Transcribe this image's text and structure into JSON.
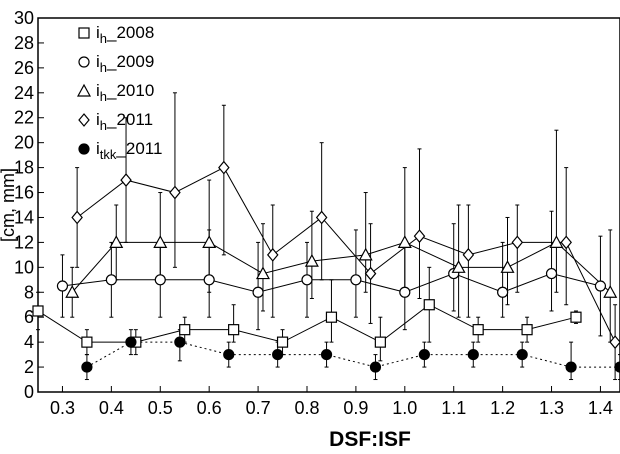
{
  "chart_data": {
    "type": "scatter",
    "xlabel": "DSF:ISF",
    "ylabel": "[cm, mm]",
    "xlim": [
      0.25,
      1.44
    ],
    "ylim": [
      0,
      30
    ],
    "xticks": [
      0.3,
      0.4,
      0.5,
      0.6,
      0.7,
      0.8,
      0.9,
      1.0,
      1.1,
      1.2,
      1.3,
      1.4
    ],
    "xtick_labels": [
      "0.3",
      "0.4",
      "0.5",
      "0.6",
      "0.7",
      "0.8",
      "0.9",
      "1.0",
      "1.1",
      "1.2",
      "1.3",
      "1.4"
    ],
    "yticks": [
      0,
      2,
      4,
      6,
      8,
      10,
      12,
      14,
      16,
      18,
      20,
      22,
      24,
      26,
      28,
      30
    ],
    "ytick_labels": [
      "0",
      "2",
      "4",
      "6",
      "8",
      "10",
      "12",
      "14",
      "16",
      "18",
      "20",
      "22",
      "24",
      "26",
      "28",
      "30"
    ],
    "grid": false,
    "legend_position": "top-left",
    "series": [
      {
        "name": "ih_2008",
        "label_main": "i",
        "label_sub": "h",
        "label_suffix": "_2008",
        "marker": "square",
        "line": "solid",
        "x": [
          0.25,
          0.35,
          0.45,
          0.55,
          0.65,
          0.75,
          0.85,
          0.95,
          1.05,
          1.15,
          1.25,
          1.35
        ],
        "y": [
          6.5,
          4,
          4,
          5,
          5,
          4,
          6,
          4,
          7,
          5,
          5,
          6
        ],
        "err_low": [
          1.5,
          1,
          1,
          1,
          1,
          1,
          2,
          1.5,
          3,
          1,
          1,
          0.5
        ],
        "err_high": [
          1.5,
          1,
          1,
          1,
          2,
          1,
          3,
          2,
          3,
          1,
          1,
          0.5
        ]
      },
      {
        "name": "ih_2009",
        "label_main": "i",
        "label_sub": "h",
        "label_suffix": "_2009",
        "marker": "circle",
        "line": "solid",
        "x": [
          0.3,
          0.4,
          0.5,
          0.6,
          0.7,
          0.8,
          0.9,
          1.0,
          1.1,
          1.2,
          1.3,
          1.4
        ],
        "y": [
          8.5,
          9,
          9,
          9,
          8,
          9,
          9,
          8,
          9.5,
          8,
          9.5,
          8.5
        ],
        "err_low": [
          2.5,
          3,
          3,
          3,
          3,
          3,
          3,
          3,
          3,
          2,
          3,
          4
        ],
        "err_high": [
          2.5,
          3,
          3,
          4,
          4,
          3,
          4,
          4,
          4,
          4,
          5,
          4
        ]
      },
      {
        "name": "ih_2010",
        "label_main": "i",
        "label_sub": "h",
        "label_suffix": "_2010",
        "marker": "triangle",
        "line": "solid",
        "x": [
          0.32,
          0.41,
          0.5,
          0.6,
          0.71,
          0.81,
          0.92,
          1.0,
          1.11,
          1.21,
          1.31,
          1.42
        ],
        "y": [
          8,
          12,
          12,
          12,
          9.5,
          10.5,
          11,
          12,
          10,
          10,
          12,
          8
        ],
        "err_low": [
          2,
          3,
          3,
          4,
          3,
          3,
          3,
          4,
          4,
          3,
          4,
          4
        ],
        "err_high": [
          2,
          3,
          4,
          5,
          4,
          4,
          5,
          6,
          5,
          4,
          9,
          5
        ]
      },
      {
        "name": "ih_2011",
        "label_main": "i",
        "label_sub": "h",
        "label_suffix": "_2011",
        "marker": "diamond",
        "line": "solid",
        "x": [
          0.33,
          0.43,
          0.53,
          0.63,
          0.73,
          0.83,
          0.93,
          1.03,
          1.13,
          1.23,
          1.33,
          1.43
        ],
        "y": [
          14,
          17,
          16,
          18,
          11,
          14,
          9.5,
          12.5,
          11,
          12,
          12,
          4
        ],
        "err_low": [
          4,
          5,
          6,
          7,
          5,
          5,
          4,
          5,
          5,
          4,
          5,
          3
        ],
        "err_high": [
          4,
          5,
          8,
          5,
          4,
          6,
          4,
          7,
          4,
          3,
          6,
          3
        ]
      },
      {
        "name": "itkk_2011",
        "label_main": "i",
        "label_sub": "tkk",
        "label_suffix": "_2011",
        "marker": "filled-circle",
        "line": "dotted",
        "x": [
          0.35,
          0.44,
          0.54,
          0.64,
          0.74,
          0.84,
          0.94,
          1.04,
          1.14,
          1.24,
          1.34,
          1.44
        ],
        "y": [
          2,
          4,
          4,
          3,
          3,
          3,
          2,
          3,
          3,
          3,
          2,
          2
        ],
        "err_low": [
          1,
          1,
          1.5,
          1,
          1,
          1,
          1,
          1,
          1,
          1,
          1,
          1
        ],
        "err_high": [
          1,
          1,
          1,
          1,
          1,
          1,
          1,
          1,
          1,
          1,
          2,
          1
        ]
      }
    ]
  }
}
